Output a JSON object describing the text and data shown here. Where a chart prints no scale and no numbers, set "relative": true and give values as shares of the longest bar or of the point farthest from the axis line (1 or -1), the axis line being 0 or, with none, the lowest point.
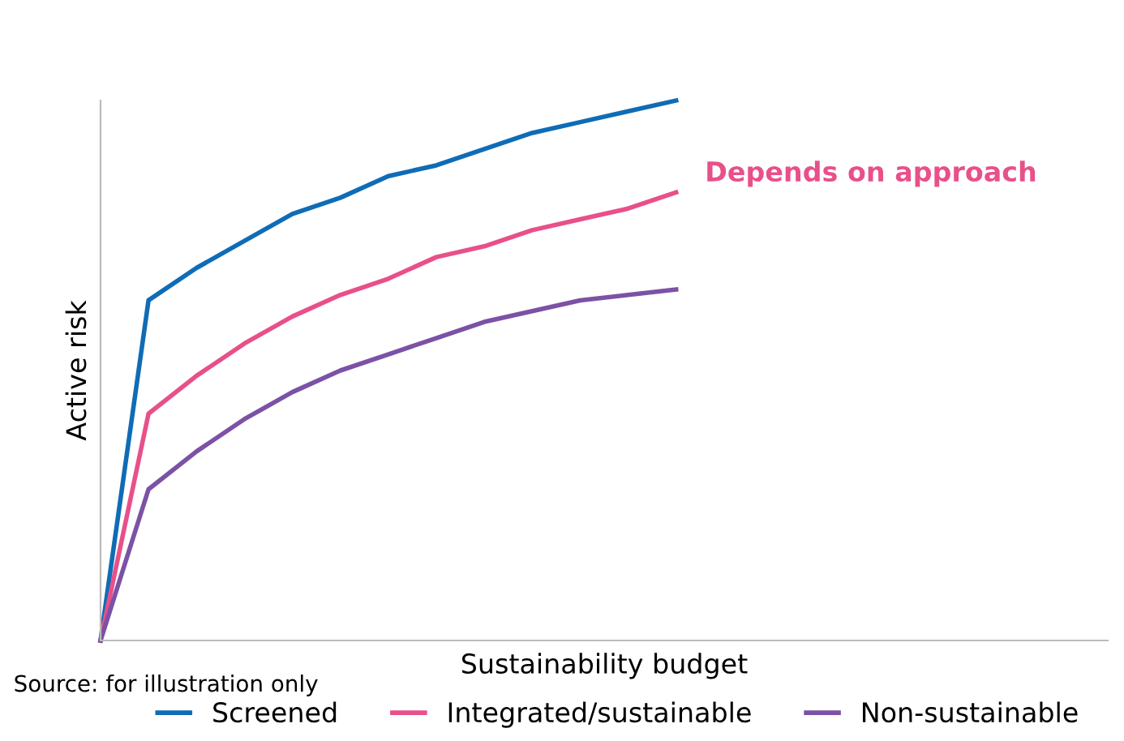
{
  "chart_data": {
    "type": "line",
    "relative": true,
    "xlabel": "Sustainability budget",
    "ylabel": "Active risk",
    "categories": [
      null,
      null,
      null,
      null,
      null,
      null,
      null,
      null,
      null,
      null,
      null,
      null,
      null,
      null,
      null,
      null,
      null,
      null,
      null,
      null,
      null,
      null
    ],
    "series": [
      {
        "name": "Screened",
        "color": "#0f6cb6",
        "values": [
          0,
          0.63,
          0.69,
          0.74,
          0.79,
          0.82,
          0.86,
          0.88,
          0.91,
          0.94,
          0.96,
          0.98,
          1.0,
          null,
          null,
          null,
          null,
          null,
          null,
          null,
          null,
          null
        ]
      },
      {
        "name": "Integrated/sustainable",
        "color": "#e8508a",
        "values": [
          0,
          0.42,
          0.49,
          0.55,
          0.6,
          0.64,
          0.67,
          0.71,
          0.73,
          0.76,
          0.78,
          0.8,
          0.83,
          null,
          null,
          null,
          null,
          null,
          null,
          null,
          null,
          null
        ]
      },
      {
        "name": "Non-sustainable",
        "color": "#7b52a6",
        "values": [
          0,
          0.28,
          0.35,
          0.41,
          0.46,
          0.5,
          0.53,
          0.56,
          0.59,
          0.61,
          0.63,
          0.64,
          0.65,
          null,
          null,
          null,
          null,
          null,
          null,
          null,
          null,
          null
        ]
      }
    ],
    "annotations": [
      "Depends on approach",
      "Source: for illustration only"
    ],
    "legend": "bottom",
    "grid": false,
    "marker": "none",
    "line_style": "solid"
  }
}
